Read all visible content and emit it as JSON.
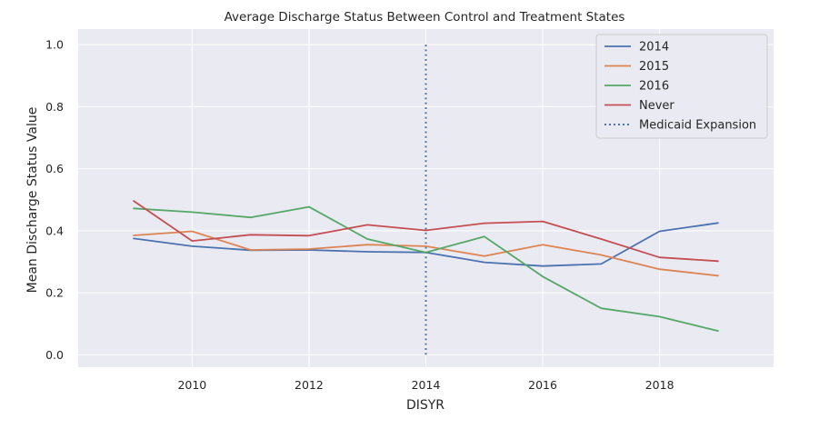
{
  "chart_data": {
    "type": "line",
    "title": "Average Discharge Status Between Control and Treatment States",
    "xlabel": "DISYR",
    "ylabel": "Mean Discharge Status Value",
    "x": [
      2009,
      2010,
      2011,
      2012,
      2013,
      2014,
      2015,
      2016,
      2017,
      2018,
      2019
    ],
    "xlim": [
      2008.05,
      2019.95
    ],
    "ylim": [
      -0.04,
      1.05
    ],
    "xticks": [
      2010,
      2012,
      2014,
      2016,
      2018
    ],
    "yticks": [
      0.0,
      0.2,
      0.4,
      0.6,
      0.8,
      1.0
    ],
    "xtick_labels": [
      "2010",
      "2012",
      "2014",
      "2016",
      "2018"
    ],
    "ytick_labels": [
      "0.0",
      "0.2",
      "0.4",
      "0.6",
      "0.8",
      "1.0"
    ],
    "grid": true,
    "legend_position": "top-right",
    "series": [
      {
        "name": "2014",
        "color": "#4c72b0",
        "values": [
          0.375,
          0.35,
          0.337,
          0.338,
          0.332,
          0.33,
          0.298,
          0.286,
          0.293,
          0.398,
          0.425
        ]
      },
      {
        "name": "2015",
        "color": "#dd8452",
        "values": [
          0.385,
          0.398,
          0.338,
          0.341,
          0.355,
          0.35,
          0.318,
          0.355,
          0.322,
          0.276,
          0.255
        ]
      },
      {
        "name": "2016",
        "color": "#55a868",
        "values": [
          0.472,
          0.46,
          0.443,
          0.477,
          0.373,
          0.33,
          0.381,
          0.252,
          0.15,
          0.123,
          0.077
        ]
      },
      {
        "name": "Never",
        "color": "#c44e52",
        "values": [
          0.496,
          0.367,
          0.387,
          0.384,
          0.419,
          0.401,
          0.424,
          0.43,
          0.373,
          0.314,
          0.302
        ]
      }
    ],
    "vline": {
      "name": "Medicaid Expansion",
      "x": 2014,
      "y_range": [
        0.0,
        1.0
      ],
      "color": "#4c72b0",
      "style": "dotted"
    }
  }
}
